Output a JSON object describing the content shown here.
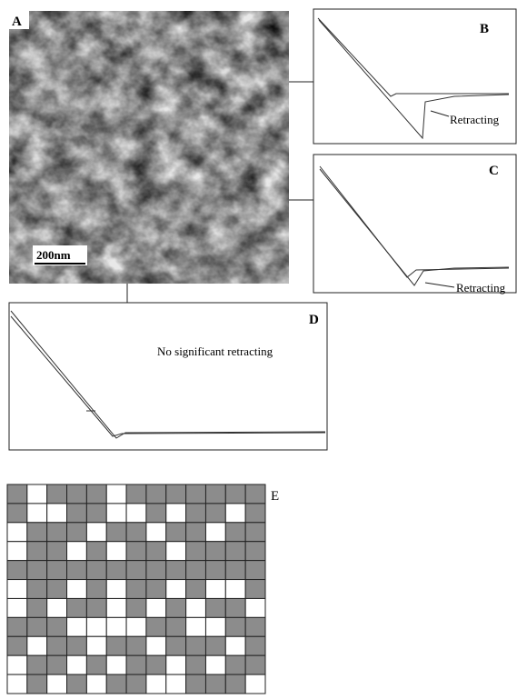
{
  "panels": {
    "a": {
      "label": "A",
      "scale_bar": "200nm"
    },
    "b": {
      "label": "B",
      "annotation": "Retracting"
    },
    "c": {
      "label": "C",
      "annotation": "Retracting"
    },
    "d": {
      "label": "D",
      "annotation": "No significant retracting"
    },
    "e": {
      "label": "E",
      "cells": [
        [
          1,
          0,
          1,
          1,
          1,
          0,
          1,
          1,
          1,
          1,
          1,
          1,
          1
        ],
        [
          1,
          0,
          0,
          1,
          1,
          0,
          0,
          1,
          0,
          1,
          1,
          0,
          1
        ],
        [
          0,
          1,
          1,
          1,
          0,
          1,
          1,
          0,
          1,
          1,
          0,
          1,
          1
        ],
        [
          0,
          1,
          1,
          0,
          1,
          0,
          1,
          1,
          0,
          1,
          1,
          1,
          1
        ],
        [
          1,
          1,
          1,
          1,
          1,
          1,
          1,
          1,
          1,
          1,
          1,
          1,
          1
        ],
        [
          0,
          1,
          1,
          0,
          1,
          0,
          1,
          1,
          0,
          1,
          0,
          0,
          1
        ],
        [
          0,
          1,
          0,
          1,
          1,
          0,
          1,
          0,
          1,
          0,
          1,
          1,
          0
        ],
        [
          1,
          1,
          1,
          0,
          0,
          0,
          0,
          1,
          1,
          0,
          0,
          1,
          1
        ],
        [
          1,
          0,
          1,
          1,
          0,
          1,
          1,
          0,
          1,
          1,
          1,
          0,
          1
        ],
        [
          0,
          1,
          1,
          0,
          1,
          0,
          1,
          1,
          0,
          1,
          0,
          1,
          1
        ],
        [
          0,
          1,
          0,
          1,
          0,
          1,
          1,
          0,
          0,
          1,
          1,
          1,
          0
        ]
      ]
    }
  }
}
